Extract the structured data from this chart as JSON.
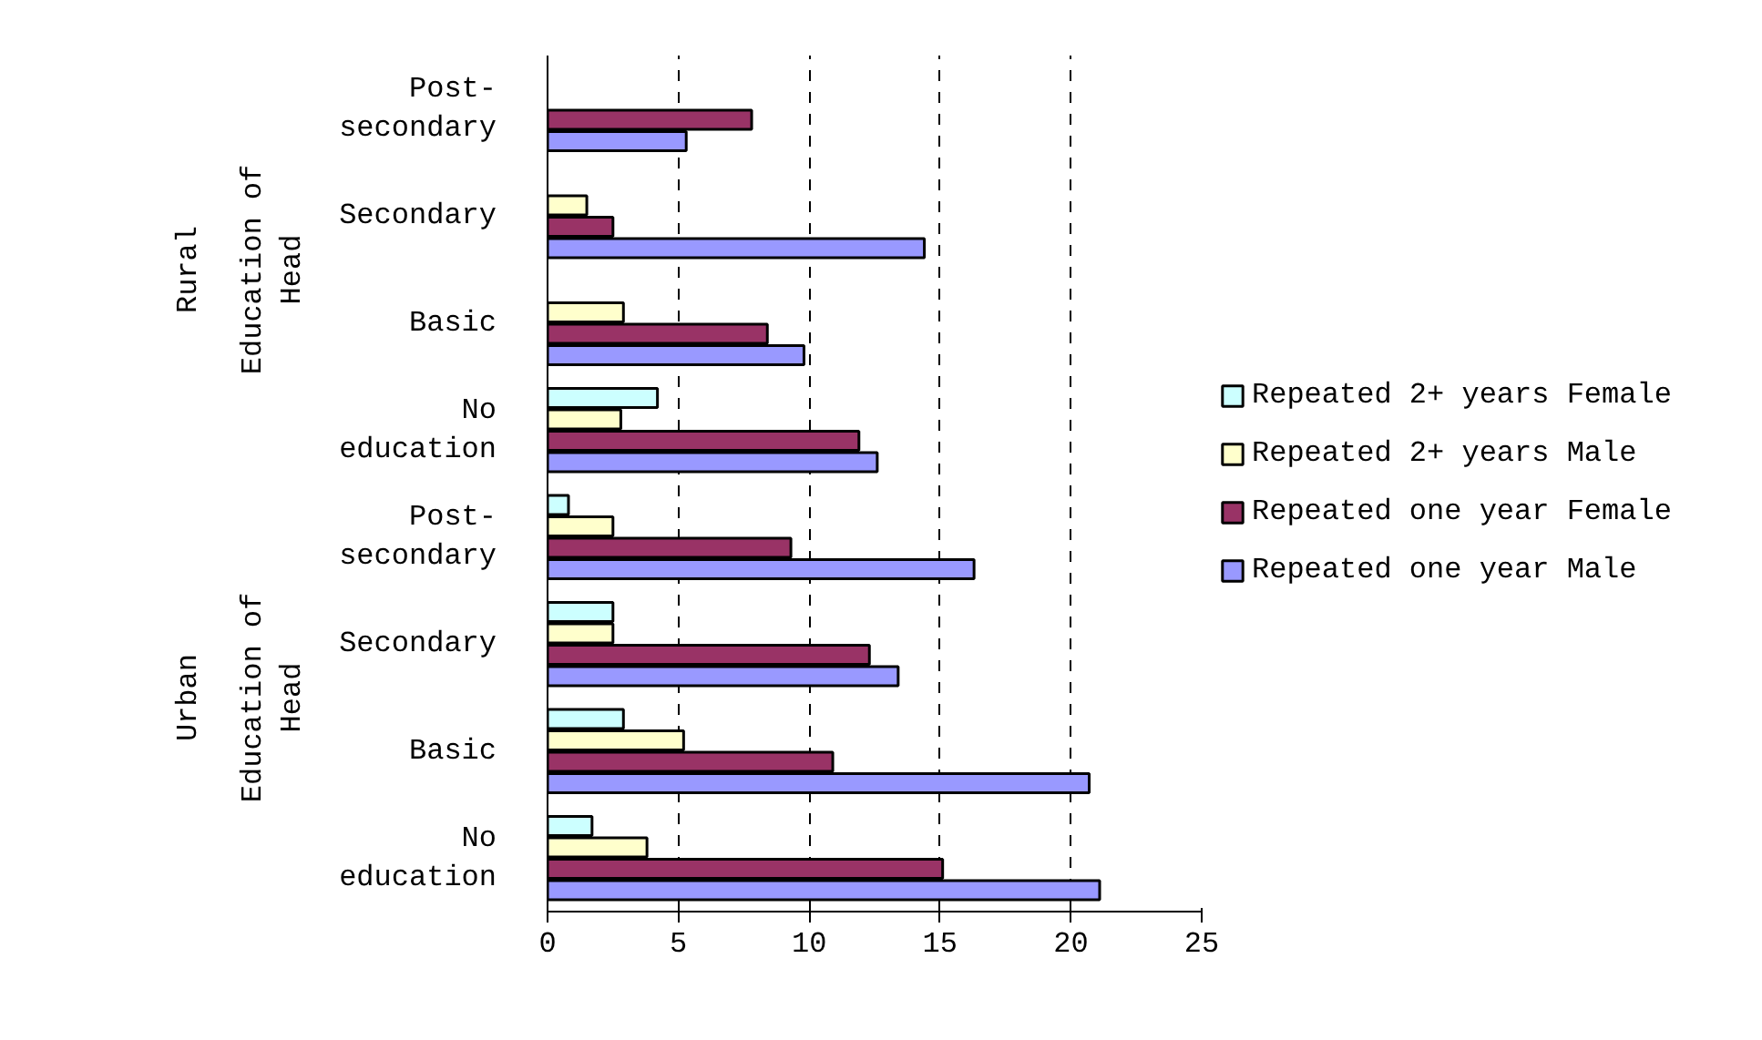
{
  "chart_data": {
    "type": "bar",
    "orientation": "horizontal",
    "categories": [
      "Post-secondary",
      "Secondary",
      "Basic",
      "No education",
      "Post-secondary",
      "Secondary",
      "Basic",
      "No education"
    ],
    "annotations": [
      "Rural",
      "Education of Head",
      "Urban",
      "Education of Head"
    ],
    "series": [
      {
        "name": "Repeated 2+ years Female",
        "color": "#ccffff",
        "values": [
          null,
          null,
          null,
          4.2,
          0.8,
          2.5,
          2.9,
          1.7
        ]
      },
      {
        "name": "Repeated 2+ years Male",
        "color": "#ffffcc",
        "values": [
          null,
          1.5,
          2.9,
          2.8,
          2.5,
          2.5,
          5.2,
          3.8
        ]
      },
      {
        "name": "Repeated one year Female",
        "color": "#993366",
        "values": [
          7.8,
          2.5,
          8.4,
          11.9,
          9.3,
          12.3,
          10.9,
          15.1
        ]
      },
      {
        "name": "Repeated one year Male",
        "color": "#9999ff",
        "values": [
          5.3,
          14.4,
          9.8,
          12.6,
          16.3,
          13.4,
          20.7,
          21.1
        ]
      }
    ],
    "xlim": [
      0,
      25
    ],
    "xticks": [
      0,
      5,
      10,
      15,
      20,
      25
    ],
    "grid": "x",
    "legend": "right"
  }
}
